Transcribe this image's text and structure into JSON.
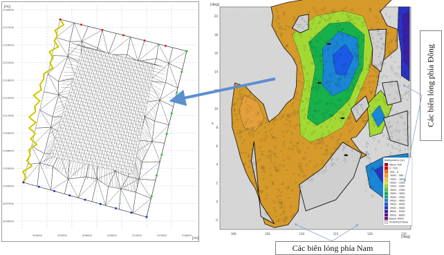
{
  "left_plot": {
    "unit_label": "[m]",
    "y_ticks": [
      "2130000",
      "2127000",
      "2124000",
      "2121000",
      "2118000",
      "2115000",
      "2112000",
      "2109000",
      "2106000",
      "2103000",
      "2100000",
      "2097000",
      "2094000"
    ],
    "x_ticks": [
      "500000",
      "503000",
      "506000",
      "509000",
      "512000",
      "515000",
      "518000"
    ],
    "boundary_colors": {
      "north": "#e01b1b",
      "east": "#22c422",
      "south": "#1f2fd6",
      "coast": "#f2ea19"
    }
  },
  "right_plot": {
    "y_unit": "[deg]",
    "x_unit": "[deg]",
    "y_axis_letter": "s",
    "y_ticks": [
      "20",
      "18",
      "16",
      "14",
      "12",
      "10",
      "8",
      "6",
      "4",
      "2",
      "0",
      "-2"
    ],
    "x_ticks": [
      "100",
      "105",
      "110",
      "115",
      "120",
      "125"
    ],
    "legend": {
      "title": "Bathymetry [m]",
      "entries": [
        {
          "label": "Above    500",
          "color": "#b40000"
        },
        {
          "label": "0 -     500",
          "color": "#e60000"
        },
        {
          "label": "-500 -       0",
          "color": "#ff6a00"
        },
        {
          "label": "-1000 -  -500",
          "color": "#ff9a1a"
        },
        {
          "label": "-1500 - -1000",
          "color": "#ffc92e"
        },
        {
          "label": "-2000 - -1500",
          "color": "#e3e62a"
        },
        {
          "label": "-2500 - -2000",
          "color": "#a3d934"
        },
        {
          "label": "-3000 - -2500",
          "color": "#4fcb3a"
        },
        {
          "label": "-3500 - -3000",
          "color": "#17b04b"
        },
        {
          "label": "-4000 - -3500",
          "color": "#14a3a3"
        },
        {
          "label": "-4500 - -4000",
          "color": "#1a86d6"
        },
        {
          "label": "-5000 - -4500",
          "color": "#1a5ae6"
        },
        {
          "label": "-5500 - -5000",
          "color": "#2a33c6"
        },
        {
          "label": "-6000 - -5500",
          "color": "#3b1ea8"
        },
        {
          "label": "-6500 - -6000",
          "color": "#5a1496"
        },
        {
          "label": "Below  -6500",
          "color": "#7a1080"
        },
        {
          "label": "Undefined Value",
          "color": "#d9d9d9"
        }
      ]
    }
  },
  "annotations": {
    "east": "Các biên lỏng phía Đông",
    "south": "Các biên lỏng phía Nam"
  }
}
